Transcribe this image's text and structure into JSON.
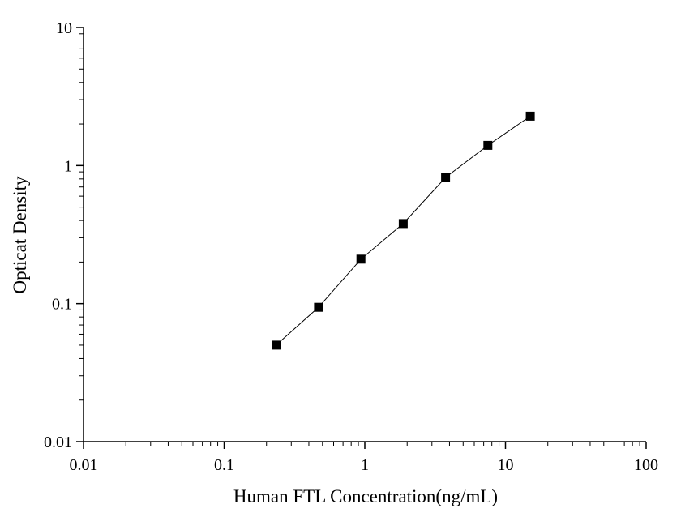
{
  "chart_data": {
    "type": "line",
    "xlabel": "Human FTL Concentration(ng/mL)",
    "ylabel": "Opticat Density",
    "x_scale": "log",
    "y_scale": "log",
    "xlim": [
      0.01,
      100
    ],
    "ylim": [
      0.01,
      10
    ],
    "x_ticks": [
      {
        "value": 0.01,
        "label": "0.01"
      },
      {
        "value": 0.1,
        "label": "0.1"
      },
      {
        "value": 1,
        "label": "1"
      },
      {
        "value": 10,
        "label": "10"
      },
      {
        "value": 100,
        "label": "100"
      }
    ],
    "y_ticks": [
      {
        "value": 0.01,
        "label": "0.01"
      },
      {
        "value": 0.1,
        "label": "0.1"
      },
      {
        "value": 1,
        "label": "1"
      },
      {
        "value": 10,
        "label": "10"
      }
    ],
    "grid": false,
    "legend": "none",
    "marker": "square",
    "color": "#000000",
    "series": [
      {
        "x": [
          0.234,
          0.469,
          0.938,
          1.875,
          3.75,
          7.5,
          15
        ],
        "y": [
          0.05,
          0.094,
          0.21,
          0.38,
          0.82,
          1.4,
          2.28
        ]
      }
    ]
  }
}
